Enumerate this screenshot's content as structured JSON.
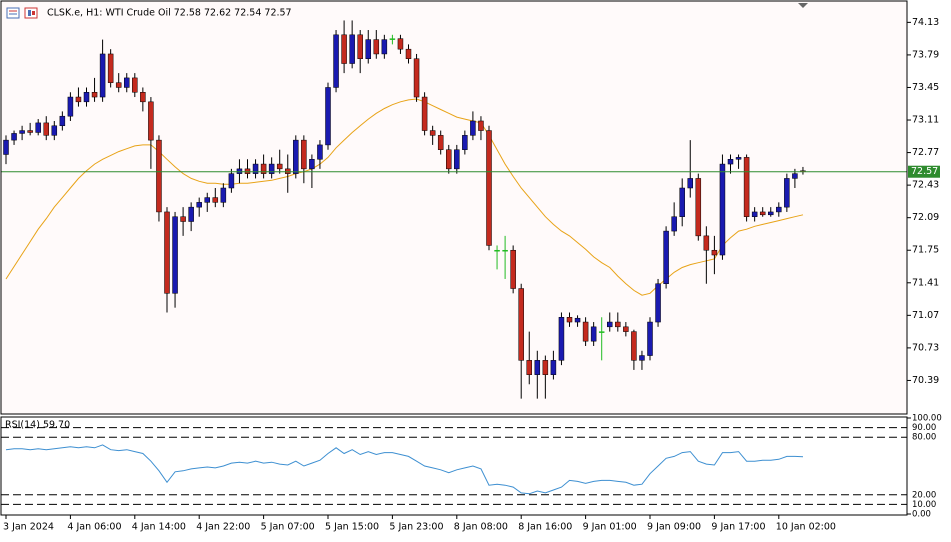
{
  "chart_data": [
    {
      "type": "candlestick",
      "title": "CLSK.e, H1:  WTI Crude Oil  72.58 72.62 72.54 72.57",
      "categories": [
        "3 Jan 2024",
        null,
        null,
        null,
        null,
        null,
        null,
        null,
        "4 Jan 06:00",
        null,
        null,
        null,
        null,
        null,
        null,
        null,
        "4 Jan 14:00",
        null,
        null,
        null,
        null,
        null,
        null,
        null,
        "4 Jan 22:00",
        null,
        null,
        null,
        null,
        null,
        null,
        null,
        "5 Jan 07:00",
        null,
        null,
        null,
        null,
        null,
        null,
        null,
        "5 Jan 15:00",
        null,
        null,
        null,
        null,
        null,
        null,
        null,
        "5 Jan 23:00",
        null,
        null,
        null,
        null,
        null,
        null,
        null,
        "8 Jan 08:00",
        null,
        null,
        null,
        null,
        null,
        null,
        null,
        "8 Jan 16:00",
        null,
        null,
        null,
        null,
        null,
        null,
        null,
        "9 Jan 01:00",
        null,
        null,
        null,
        null,
        null,
        null,
        null,
        "9 Jan 09:00",
        null,
        null,
        null,
        null,
        null,
        null,
        null,
        "9 Jan 17:00",
        null,
        null,
        null,
        null,
        null,
        null,
        null,
        "10 Jan 02:00",
        null,
        null,
        null
      ],
      "open": [
        72.75,
        72.9,
        72.97,
        73.0,
        72.98,
        73.08,
        72.95,
        73.05,
        73.15,
        73.35,
        73.3,
        73.4,
        73.35,
        73.8,
        73.5,
        73.45,
        73.55,
        73.4,
        73.3,
        72.9,
        72.15,
        71.3,
        72.1,
        72.05,
        72.2,
        72.25,
        72.3,
        72.25,
        72.4,
        72.55,
        72.6,
        72.55,
        72.65,
        72.55,
        72.65,
        72.6,
        72.55,
        72.9,
        72.6,
        72.7,
        72.85,
        73.45,
        74.0,
        73.7,
        74.0,
        73.75,
        73.95,
        73.8,
        73.96,
        73.96,
        73.85,
        73.75,
        73.35,
        73.0,
        72.95,
        72.8,
        72.6,
        72.8,
        72.95,
        73.1,
        73.0,
        71.75,
        71.75,
        71.75,
        71.35,
        70.6,
        70.45,
        70.6,
        70.45,
        70.6,
        71.05,
        71.0,
        71.0,
        70.8,
        70.9,
        70.95,
        71.0,
        70.95,
        70.9,
        70.6,
        70.65,
        71.0,
        71.4,
        71.95,
        72.1,
        72.4,
        72.5,
        71.9,
        71.75,
        71.7,
        72.65,
        72.7,
        72.72,
        72.1,
        72.15,
        72.12,
        72.15,
        72.2,
        72.5,
        72.58
      ],
      "high": [
        72.95,
        73.0,
        73.05,
        73.08,
        73.12,
        73.15,
        73.1,
        73.2,
        73.4,
        73.45,
        73.45,
        73.55,
        73.95,
        73.85,
        73.6,
        73.6,
        73.6,
        73.45,
        73.35,
        72.95,
        72.2,
        72.15,
        72.2,
        72.25,
        72.3,
        72.35,
        72.4,
        72.45,
        72.6,
        72.7,
        72.7,
        72.7,
        72.75,
        72.72,
        72.8,
        72.75,
        72.95,
        72.95,
        72.75,
        72.9,
        73.5,
        74.05,
        74.15,
        74.15,
        74.05,
        74.05,
        74.05,
        74.0,
        74.0,
        74.0,
        73.9,
        73.8,
        73.4,
        73.05,
        73.0,
        72.85,
        72.85,
        73.0,
        73.2,
        73.15,
        73.05,
        71.8,
        71.9,
        71.8,
        71.4,
        70.9,
        70.7,
        70.65,
        70.7,
        71.1,
        71.1,
        71.07,
        71.05,
        71.0,
        71.05,
        71.1,
        71.1,
        71.0,
        70.92,
        70.7,
        71.05,
        71.45,
        72.0,
        72.25,
        72.5,
        72.9,
        72.55,
        72.0,
        71.9,
        72.75,
        72.75,
        72.75,
        72.75,
        72.2,
        72.2,
        72.2,
        72.25,
        72.55,
        72.6,
        72.62
      ],
      "low": [
        72.65,
        72.85,
        72.9,
        72.95,
        72.95,
        72.9,
        72.9,
        73.0,
        73.1,
        73.25,
        73.25,
        73.3,
        73.3,
        73.45,
        73.4,
        73.4,
        73.35,
        73.2,
        72.6,
        72.05,
        71.1,
        71.15,
        71.9,
        71.95,
        72.1,
        72.15,
        72.2,
        72.2,
        72.35,
        72.45,
        72.5,
        72.5,
        72.5,
        72.5,
        72.55,
        72.35,
        72.5,
        72.45,
        72.4,
        72.6,
        72.8,
        73.4,
        73.6,
        73.65,
        73.6,
        73.7,
        73.75,
        73.75,
        73.9,
        73.8,
        73.7,
        73.3,
        72.95,
        72.85,
        72.75,
        72.55,
        72.55,
        72.75,
        72.9,
        72.9,
        71.75,
        71.55,
        71.45,
        71.3,
        70.2,
        70.35,
        70.2,
        70.2,
        70.4,
        70.55,
        70.95,
        70.95,
        70.75,
        70.75,
        70.6,
        70.9,
        70.9,
        70.85,
        70.5,
        70.5,
        70.6,
        70.95,
        71.35,
        71.9,
        72.0,
        72.3,
        71.85,
        71.4,
        71.5,
        71.65,
        72.55,
        72.6,
        72.05,
        72.05,
        72.1,
        72.1,
        72.1,
        72.15,
        72.4,
        72.54
      ],
      "close": [
        72.9,
        72.97,
        73.0,
        72.98,
        73.08,
        72.95,
        73.05,
        73.15,
        73.35,
        73.3,
        73.4,
        73.35,
        73.8,
        73.5,
        73.45,
        73.55,
        73.4,
        73.3,
        72.9,
        72.15,
        71.3,
        72.1,
        72.05,
        72.2,
        72.25,
        72.3,
        72.25,
        72.4,
        72.55,
        72.6,
        72.55,
        72.65,
        72.55,
        72.65,
        72.6,
        72.55,
        72.9,
        72.6,
        72.7,
        72.85,
        73.45,
        74.0,
        73.7,
        74.0,
        73.75,
        73.95,
        73.8,
        73.95,
        73.96,
        73.85,
        73.75,
        73.35,
        73.0,
        72.95,
        72.8,
        72.6,
        72.8,
        72.95,
        73.1,
        73.0,
        71.8,
        71.75,
        71.75,
        71.35,
        70.6,
        70.45,
        70.6,
        70.45,
        70.6,
        71.05,
        71.0,
        71.04,
        70.8,
        70.95,
        70.9,
        71.0,
        70.95,
        70.9,
        70.6,
        70.65,
        71.0,
        71.4,
        71.95,
        72.1,
        72.4,
        72.5,
        71.9,
        71.75,
        71.7,
        72.65,
        72.7,
        72.72,
        72.1,
        72.15,
        72.12,
        72.15,
        72.2,
        72.5,
        72.55,
        72.57
      ],
      "bull_color": "#1a1ab0",
      "bear_color": "#c42a1e",
      "doji_color": "#22bb22",
      "ma": {
        "color": "#e8a317",
        "values": [
          71.45,
          71.58,
          71.71,
          71.84,
          71.97,
          72.08,
          72.2,
          72.3,
          72.4,
          72.5,
          72.58,
          72.65,
          72.7,
          72.74,
          72.78,
          72.81,
          72.84,
          72.85,
          72.85,
          72.78,
          72.7,
          72.62,
          72.55,
          72.5,
          72.47,
          72.45,
          72.45,
          72.44,
          72.44,
          72.45,
          72.45,
          72.46,
          72.47,
          72.48,
          72.5,
          72.52,
          72.55,
          72.57,
          72.6,
          72.65,
          72.72,
          72.82,
          72.9,
          72.98,
          73.05,
          73.12,
          73.18,
          73.23,
          73.27,
          73.3,
          73.32,
          73.33,
          73.3,
          73.26,
          73.22,
          73.18,
          73.14,
          73.12,
          73.1,
          73.08,
          72.95,
          72.8,
          72.65,
          72.52,
          72.4,
          72.3,
          72.2,
          72.1,
          72.02,
          71.95,
          71.9,
          71.83,
          71.76,
          71.68,
          71.62,
          71.57,
          71.48,
          71.4,
          71.33,
          71.28,
          71.3,
          71.38,
          71.45,
          71.52,
          71.57,
          71.6,
          71.62,
          71.64,
          71.66,
          71.8,
          71.88,
          71.95,
          71.97,
          72.0,
          72.02,
          72.04,
          72.06,
          72.08,
          72.1,
          72.12
        ]
      },
      "last_price": 72.57,
      "last_price_color": "#2e8b2e",
      "ylim": [
        70.05,
        74.28
      ],
      "yticks": [
        74.13,
        73.79,
        73.45,
        73.11,
        72.77,
        72.43,
        72.09,
        71.75,
        71.41,
        71.07,
        70.73,
        70.39
      ],
      "background": "#fffafa"
    },
    {
      "type": "line",
      "title": "RSI(14) 59.70",
      "series": [
        {
          "color": "#3d8fd1",
          "values": [
            67,
            68,
            68,
            67,
            68,
            67,
            68,
            69,
            70,
            69,
            70,
            69,
            72,
            67,
            66,
            67,
            65,
            63,
            55,
            45,
            33,
            44,
            45,
            47,
            48,
            49,
            48,
            50,
            53,
            54,
            53,
            55,
            53,
            54,
            52,
            51,
            55,
            50,
            53,
            56,
            63,
            69,
            63,
            67,
            62,
            65,
            62,
            64,
            64,
            62,
            60,
            55,
            50,
            48,
            46,
            43,
            46,
            48,
            50,
            47,
            30,
            31,
            30,
            28,
            22,
            21,
            24,
            22,
            25,
            28,
            35,
            34,
            32,
            34,
            35,
            35,
            34,
            33,
            30,
            31,
            42,
            50,
            58,
            60,
            64,
            65,
            55,
            52,
            51,
            64,
            64,
            65,
            55,
            55,
            56,
            56,
            57,
            60,
            60,
            59.7
          ]
        }
      ],
      "ylim": [
        0,
        100
      ],
      "yticks": [
        {
          "value": 100,
          "label": "100.00"
        },
        {
          "value": 90,
          "label": "90.00"
        },
        {
          "value": 80,
          "label": "80.00"
        },
        {
          "value": 20,
          "label": "20.00"
        },
        {
          "value": 10,
          "label": "10.00"
        },
        {
          "value": 0,
          "label": "0.00"
        }
      ]
    }
  ]
}
